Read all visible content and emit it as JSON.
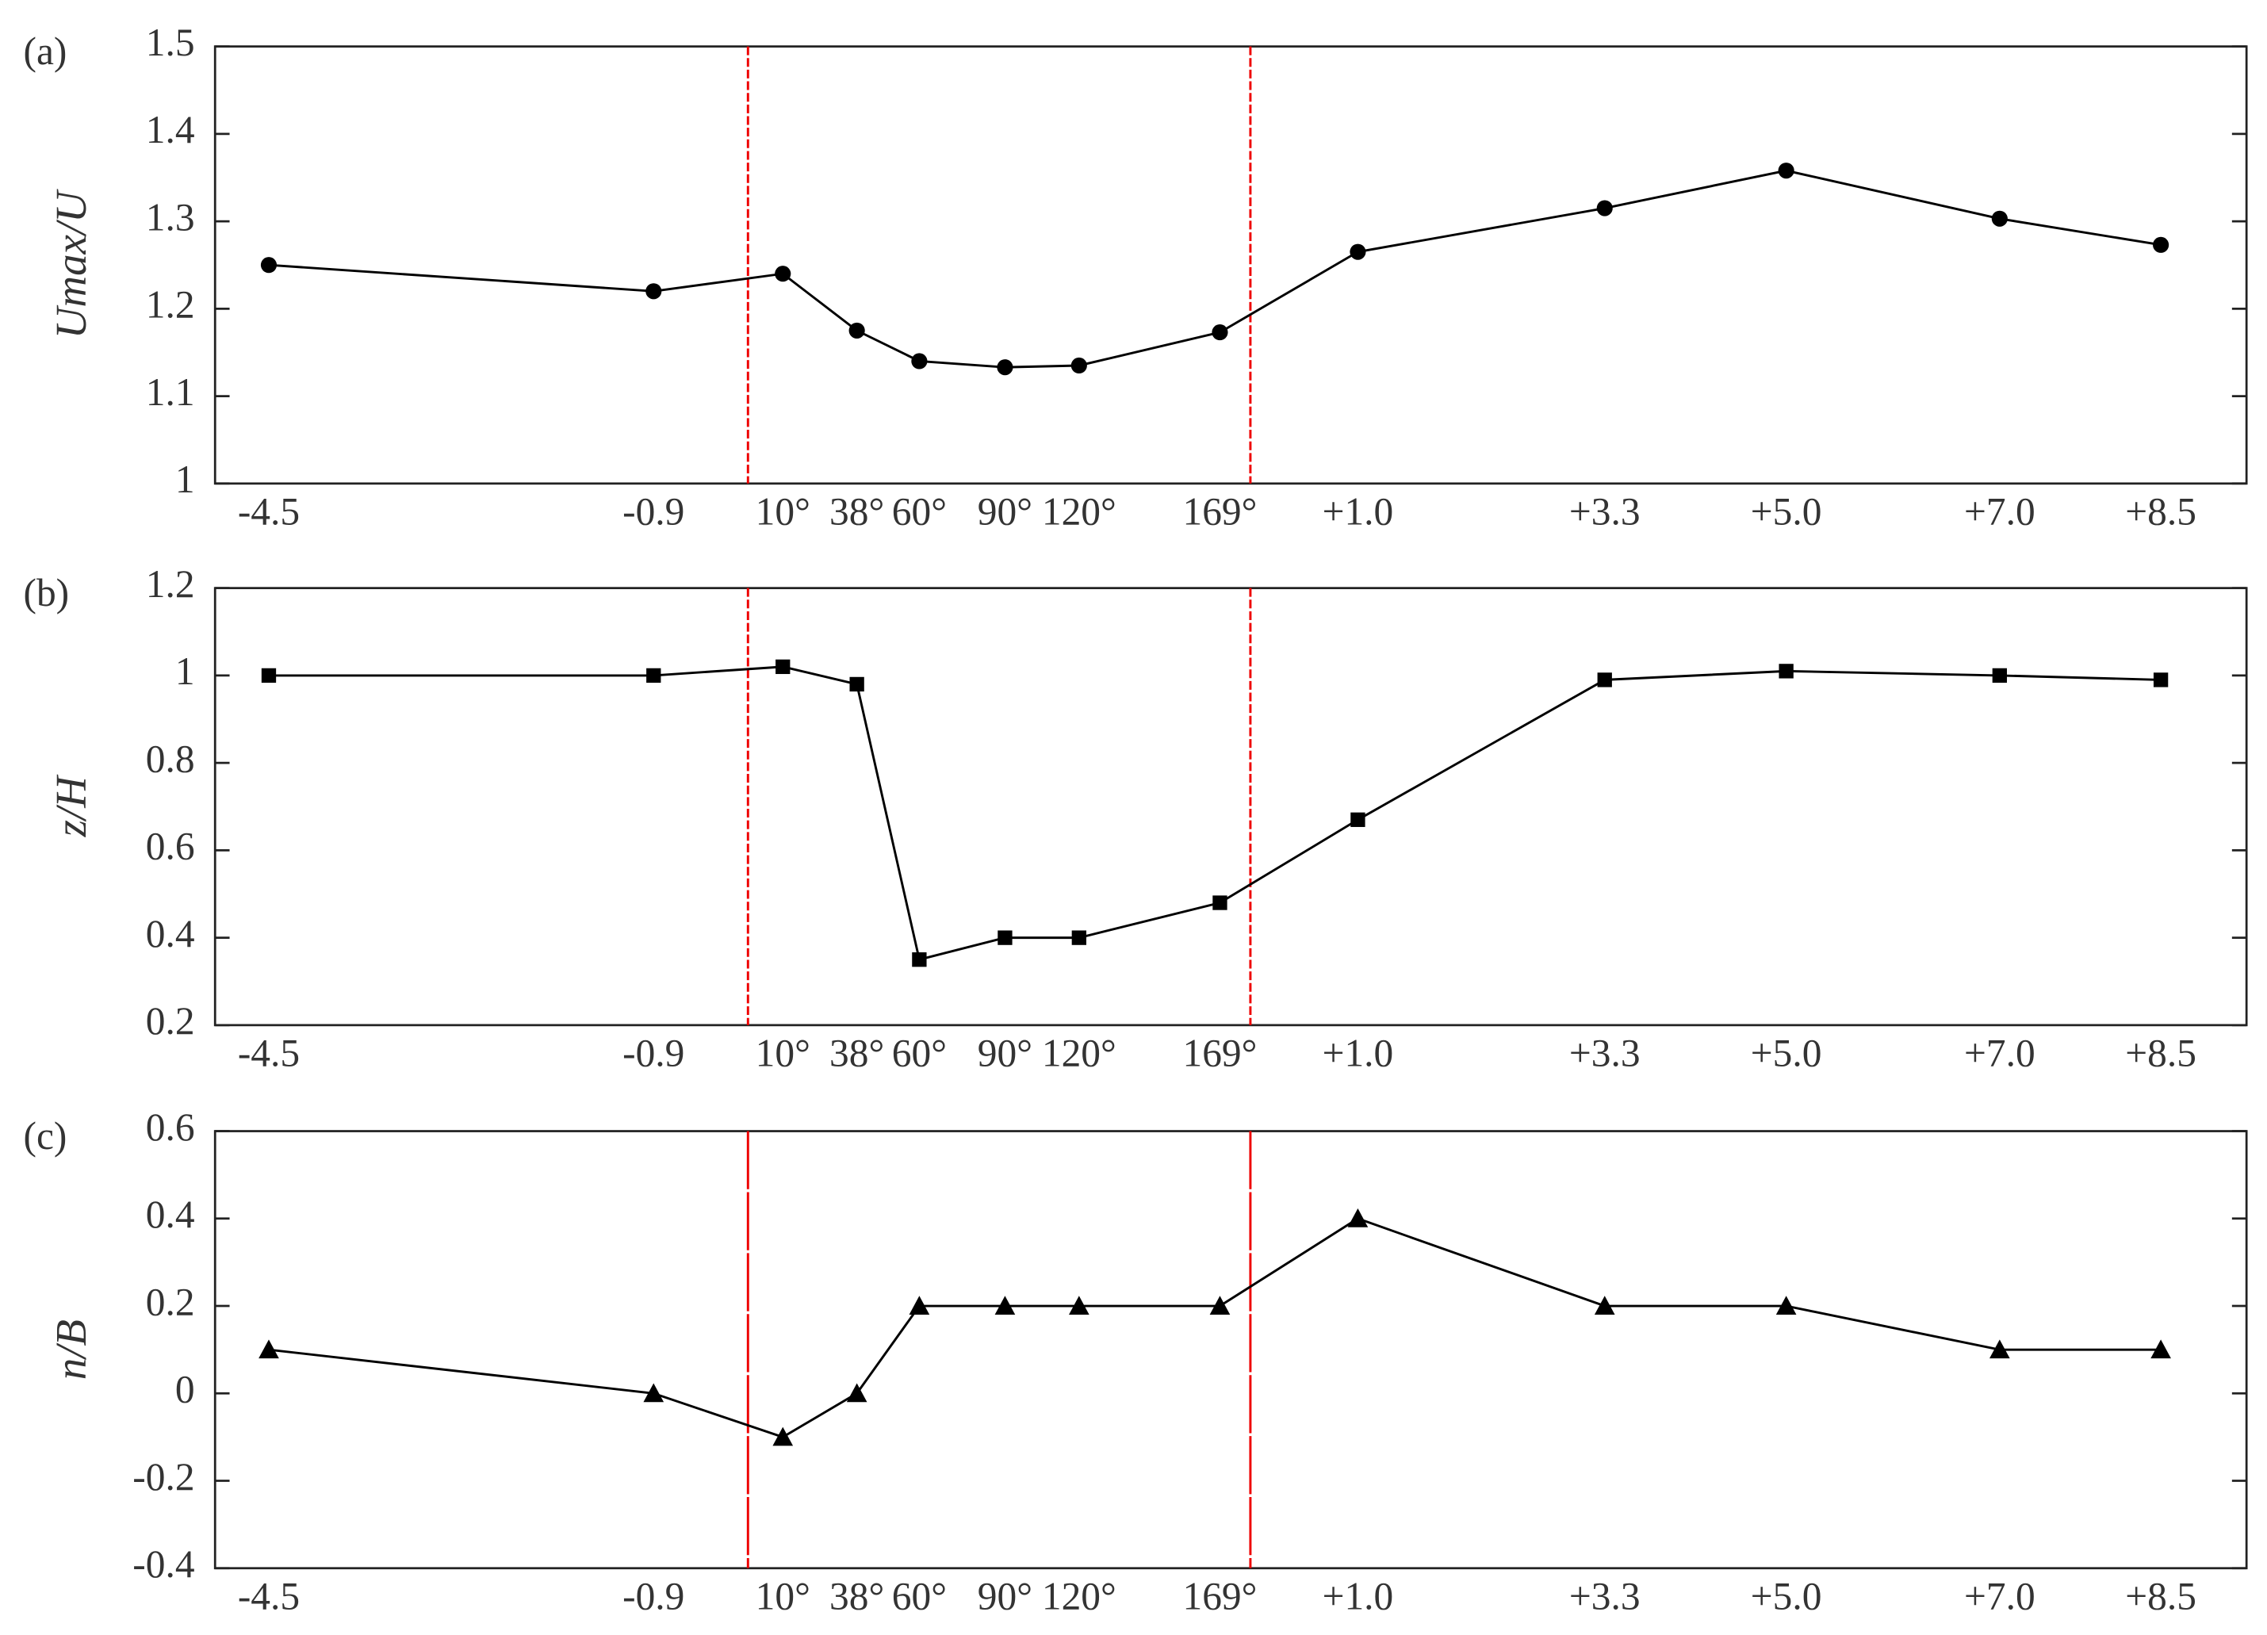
{
  "chart_data": [
    {
      "type": "line",
      "panel": "(a)",
      "ylabel": "Umax/U",
      "categories": [
        "-4.5",
        "-0.9",
        "10°",
        "38°",
        "60°",
        "90°",
        "120°",
        "169°",
        "+1.0",
        "+3.3",
        "+5.0",
        "+7.0",
        "+8.5"
      ],
      "values": [
        1.25,
        1.22,
        1.24,
        1.175,
        1.14,
        1.133,
        1.135,
        1.173,
        1.265,
        1.315,
        1.358,
        1.303,
        1.273
      ],
      "ylim": [
        1,
        1.5
      ],
      "yticks": [
        1,
        1.1,
        1.2,
        1.3,
        1.4,
        1.5
      ],
      "marker": "circle",
      "color": "#000000"
    },
    {
      "type": "line",
      "panel": "(b)",
      "ylabel": "z/H",
      "categories": [
        "-4.5",
        "-0.9",
        "10°",
        "38°",
        "60°",
        "90°",
        "120°",
        "169°",
        "+1.0",
        "+3.3",
        "+5.0",
        "+7.0",
        "+8.5"
      ],
      "values": [
        1.0,
        1.0,
        1.02,
        0.98,
        0.35,
        0.4,
        0.4,
        0.48,
        0.67,
        0.99,
        1.01,
        1.0,
        0.99
      ],
      "ylim": [
        0.2,
        1.2
      ],
      "yticks": [
        0.2,
        0.4,
        0.6,
        0.8,
        1,
        1.2
      ],
      "marker": "square",
      "color": "#000000"
    },
    {
      "type": "line",
      "panel": "(c)",
      "ylabel": "n/B",
      "categories": [
        "-4.5",
        "-0.9",
        "10°",
        "38°",
        "60°",
        "90°",
        "120°",
        "169°",
        "+1.0",
        "+3.3",
        "+5.0",
        "+7.0",
        "+8.5"
      ],
      "values": [
        0.1,
        0,
        -0.1,
        0,
        0.2,
        0.2,
        0.2,
        0.2,
        0.4,
        0.2,
        0.2,
        0.1,
        0.1
      ],
      "ylim": [
        -0.4,
        0.6
      ],
      "yticks": [
        -0.4,
        -0.2,
        0,
        0.2,
        0.4,
        0.6
      ],
      "marker": "triangle",
      "color": "#000000"
    }
  ]
}
